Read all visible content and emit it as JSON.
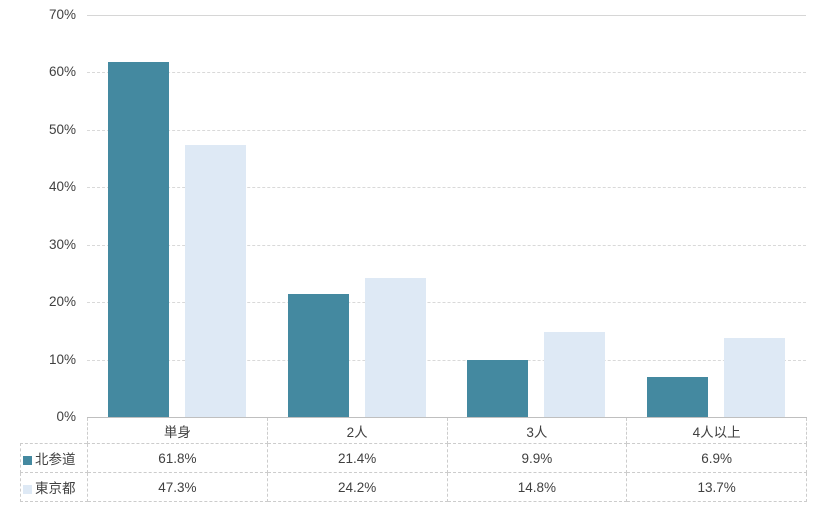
{
  "chart_data": {
    "type": "bar",
    "title": "",
    "categories": [
      "単身",
      "2人",
      "3人",
      "4人以上"
    ],
    "series": [
      {
        "name": "北参道",
        "color": "#4489A0",
        "values": [
          61.8,
          21.4,
          9.9,
          6.9
        ]
      },
      {
        "name": "東京都",
        "color": "#DEE9F5",
        "values": [
          47.3,
          24.2,
          14.8,
          13.7
        ]
      }
    ],
    "xlabel": "",
    "ylabel": "",
    "ylim": [
      0,
      70
    ],
    "ytick_step": 10,
    "ytick_suffix": "%",
    "grid": true,
    "legend_position": "table-left"
  },
  "table": {
    "corner": "",
    "headers": [
      "単身",
      "2人",
      "3人",
      "4人以上"
    ],
    "rows": [
      {
        "label": "北参道",
        "legend_color": "#4489A0",
        "values": [
          "61.8%",
          "21.4%",
          "9.9%",
          "6.9%"
        ]
      },
      {
        "label": "東京都",
        "legend_color": "#DEE9F5",
        "values": [
          "47.3%",
          "24.2%",
          "14.8%",
          "13.7%"
        ]
      }
    ]
  },
  "colors": {
    "series1": "#4489A0",
    "series2": "#DEE9F5",
    "gridline": "#D9D9D9",
    "axis_line": "#BFBFBF",
    "table_border": "#CCCCCC",
    "text": "#404040",
    "background": "#FFFFFF"
  }
}
